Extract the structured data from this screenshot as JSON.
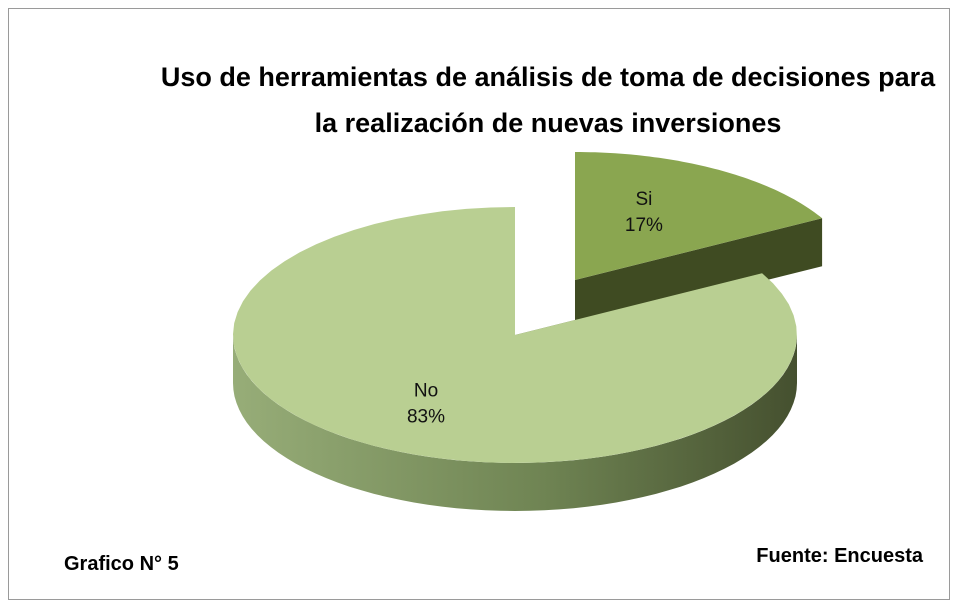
{
  "chart_data": {
    "type": "pie",
    "title": "Uso de herramientas  de análisis de toma de decisiones para la realización de nuevas inversiones",
    "categories": [
      "Si",
      "No"
    ],
    "values": [
      17,
      83
    ],
    "value_labels": [
      "17%",
      "83%"
    ],
    "colors": [
      "#8aa650",
      "#b9cf92"
    ],
    "footnote": "Grafico N° 5",
    "source": "Fuente: Encuesta"
  }
}
